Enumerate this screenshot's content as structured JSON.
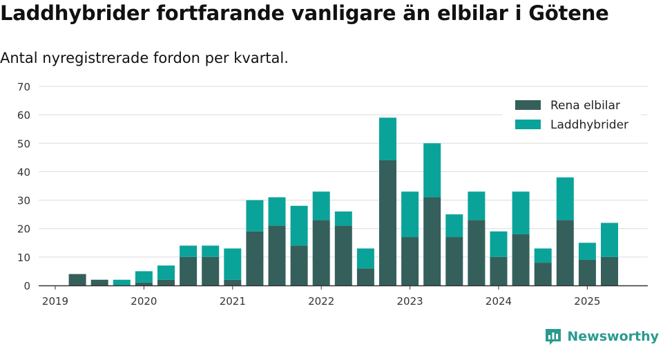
{
  "title": "Laddhybrider fortfarande vanligare än elbilar i Götene",
  "subtitle": "Antal nyregistrerade fordon per kvartal.",
  "brand": {
    "name": "Newsworthy",
    "icon": "newsworthy-logo-icon"
  },
  "colors": {
    "rena": "#355f5b",
    "ladd": "#0aa39a",
    "grid": "#dcdcdc",
    "axis": "#333333",
    "brand": "#2a9a8f"
  },
  "chart_data": {
    "type": "bar",
    "stacked": true,
    "x_unit": "quarter",
    "categories": [
      "2019 Q1",
      "2019 Q2",
      "2019 Q3",
      "2019 Q4",
      "2020 Q1",
      "2020 Q2",
      "2020 Q3",
      "2020 Q4",
      "2021 Q1",
      "2021 Q2",
      "2021 Q3",
      "2021 Q4",
      "2022 Q1",
      "2022 Q2",
      "2022 Q3",
      "2022 Q4",
      "2023 Q1",
      "2023 Q2",
      "2023 Q3",
      "2023 Q4",
      "2024 Q1",
      "2024 Q2",
      "2024 Q3",
      "2024 Q4",
      "2025 Q1",
      "2025 Q2"
    ],
    "series": [
      {
        "name": "Rena elbilar",
        "color": "#355f5b",
        "values": [
          0,
          4,
          2,
          0,
          1,
          2,
          10,
          10,
          2,
          19,
          21,
          14,
          23,
          21,
          6,
          44,
          17,
          31,
          17,
          23,
          10,
          18,
          8,
          23,
          9,
          10
        ]
      },
      {
        "name": "Laddhybrider",
        "color": "#0aa39a",
        "values": [
          0,
          0,
          0,
          2,
          4,
          5,
          4,
          4,
          11,
          11,
          10,
          14,
          10,
          5,
          7,
          15,
          16,
          19,
          8,
          10,
          9,
          15,
          5,
          15,
          6,
          12
        ]
      }
    ],
    "ylim": [
      0,
      70
    ],
    "yticks": [
      0,
      10,
      20,
      30,
      40,
      50,
      60,
      70
    ],
    "xtick_labels": [
      "2019",
      "2020",
      "2021",
      "2022",
      "2023",
      "2024",
      "2025"
    ],
    "grid": true,
    "legend_position": "top-right"
  }
}
